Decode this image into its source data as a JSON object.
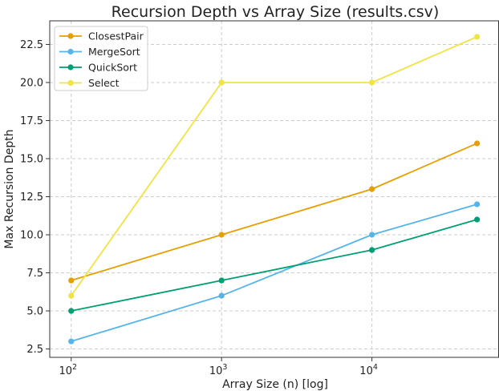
{
  "chart_data": {
    "type": "line",
    "title": "Recursion Depth vs Array Size (results.csv)",
    "xlabel": "Array Size (n) [log]",
    "ylabel": "Max Recursion Depth",
    "x_scale": "log",
    "x": [
      100,
      1000,
      10000,
      50000
    ],
    "x_ticks": [
      {
        "value": 100,
        "base": "10",
        "exp": "2"
      },
      {
        "value": 1000,
        "base": "10",
        "exp": "3"
      },
      {
        "value": 10000,
        "base": "10",
        "exp": "4"
      }
    ],
    "xlim": [
      72,
      70000
    ],
    "ylim": [
      1.95,
      24.05
    ],
    "y_ticks": [
      "2.5",
      "5.0",
      "7.5",
      "10.0",
      "12.5",
      "15.0",
      "17.5",
      "20.0",
      "22.5"
    ],
    "grid": true,
    "legend_position": "top-left",
    "series": [
      {
        "name": "ClosestPair",
        "color": "#E69F00",
        "values": [
          7,
          10,
          13,
          16
        ]
      },
      {
        "name": "MergeSort",
        "color": "#56B4E9",
        "values": [
          3,
          6,
          10,
          12
        ]
      },
      {
        "name": "QuickSort",
        "color": "#009E73",
        "values": [
          5,
          7,
          9,
          11
        ]
      },
      {
        "name": "Select",
        "color": "#F0E442",
        "values": [
          6,
          20,
          20,
          23
        ]
      }
    ]
  }
}
